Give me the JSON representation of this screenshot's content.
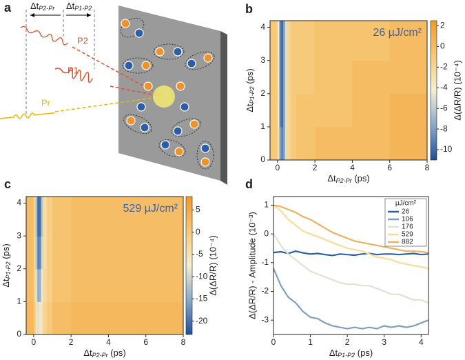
{
  "panel_labels": [
    "a",
    "b",
    "c",
    "d"
  ],
  "diagram": {
    "delays": [
      [
        "Δt",
        "P2-Pr"
      ],
      [
        "Δt",
        "P1-P2"
      ]
    ],
    "beams": [
      "P2",
      "P1",
      "Pr"
    ]
  },
  "chart_data": [
    {
      "type": "heatmap",
      "annotation": "26 µJ/cm²",
      "x_edges": [
        -0.4,
        0,
        0.1,
        0.2,
        0.3,
        0.4,
        0.5,
        0.7,
        1,
        2,
        4,
        6,
        8
      ],
      "y_edges": [
        0,
        1,
        2,
        3,
        4.2
      ],
      "z": [
        [
          -1,
          -3,
          -8,
          -9,
          -8,
          -5,
          -2,
          -1,
          -0.5,
          0,
          0,
          0.5
        ],
        [
          -1,
          -4,
          -9,
          -10,
          -8,
          -5,
          -2,
          -1,
          -0.5,
          -0.5,
          0,
          0.5
        ],
        [
          -1,
          -4,
          -9,
          -10,
          -8,
          -5,
          -2,
          -1,
          -1,
          -0.5,
          0,
          0
        ],
        [
          -1,
          -4,
          -9,
          -10,
          -8,
          -5,
          -2,
          -1,
          -1,
          -0.5,
          -0.5,
          0
        ]
      ],
      "xlim": [
        -0.4,
        8
      ],
      "ylim": [
        0,
        4.2
      ],
      "xticks": [
        0,
        2,
        4,
        6,
        8
      ],
      "yticks": [
        0,
        1,
        2,
        3,
        4
      ],
      "xlabel": [
        "Δt",
        "P2-Pr",
        " (ps)"
      ],
      "ylabel": [
        "Δt",
        "P1-P2",
        " (ps)"
      ],
      "colorbar": {
        "label": "Δ(ΔR/R) (10⁻⁴)",
        "lim": [
          -11,
          2.5
        ],
        "ticks": [
          2,
          0,
          -2,
          -4,
          -6,
          -8,
          -10
        ]
      },
      "colormap": [
        "#1f4e96",
        "#8aa9c8",
        "#f4eed2",
        "#f7c877",
        "#f09a2a"
      ]
    },
    {
      "type": "heatmap",
      "annotation": "529 µJ/cm²",
      "x_edges": [
        -0.4,
        0,
        0.1,
        0.2,
        0.3,
        0.4,
        0.5,
        0.7,
        1,
        2,
        4,
        6,
        8
      ],
      "y_edges": [
        0,
        1,
        2,
        3,
        4.2
      ],
      "z": [
        [
          3,
          0,
          -5,
          -9,
          -8,
          -5,
          -2,
          0,
          2,
          3,
          3,
          3
        ],
        [
          2,
          -2,
          -9,
          -15,
          -14,
          -8,
          -3,
          -1,
          1,
          2,
          2,
          2
        ],
        [
          2,
          -3,
          -12,
          -19,
          -18,
          -10,
          -4,
          -1,
          1,
          2,
          2,
          2
        ],
        [
          2,
          -3,
          -13,
          -21,
          -20,
          -12,
          -4,
          -1,
          1,
          2,
          2,
          2
        ]
      ],
      "xlim": [
        -0.4,
        8
      ],
      "ylim": [
        0,
        4.2
      ],
      "xticks": [
        0,
        2,
        4,
        6,
        8
      ],
      "yticks": [
        0,
        1,
        2,
        3,
        4
      ],
      "xlabel": [
        "Δt",
        "P2-Pr",
        " (ps)"
      ],
      "ylabel": [
        "Δt",
        "P1-P2",
        " (ps)"
      ],
      "colorbar": {
        "label": "Δ(ΔR/R) (10⁻⁴)",
        "lim": [
          -23,
          8
        ],
        "ticks": [
          5,
          0,
          -5,
          -10,
          -15,
          -20
        ]
      },
      "colormap": [
        "#1f4e96",
        "#8aa9c8",
        "#f4eed2",
        "#f7c877",
        "#f09a2a"
      ]
    },
    {
      "type": "line",
      "x": [
        0,
        0.2,
        0.4,
        0.6,
        0.8,
        1.0,
        1.2,
        1.4,
        1.6,
        1.8,
        2.0,
        2.2,
        2.4,
        2.6,
        2.8,
        3.0,
        3.2,
        3.4,
        3.6,
        3.8,
        4.0,
        4.2
      ],
      "series": [
        {
          "name": "26",
          "color": "#2a5ea8",
          "values": [
            -0.65,
            -0.62,
            -0.68,
            -0.6,
            -0.66,
            -0.7,
            -0.68,
            -0.72,
            -0.75,
            -0.7,
            -0.72,
            -0.74,
            -0.7,
            -0.68,
            -0.72,
            -0.7,
            -0.7,
            -0.72,
            -0.7,
            -0.68,
            -0.72,
            -0.7
          ]
        },
        {
          "name": "106",
          "color": "#7f9fbf",
          "values": [
            -1.2,
            -1.8,
            -2.2,
            -2.4,
            -2.7,
            -2.9,
            -2.95,
            -3.1,
            -3.2,
            -3.25,
            -3.3,
            -3.25,
            -3.3,
            -3.25,
            -3.3,
            -3.2,
            -3.25,
            -3.2,
            -3.25,
            -3.2,
            -3.1,
            -3.0
          ]
        },
        {
          "name": "176",
          "color": "#dce6cf",
          "values": [
            0,
            -0.4,
            -0.7,
            -0.9,
            -1.1,
            -1.3,
            -1.4,
            -1.5,
            -1.6,
            -1.7,
            -1.75,
            -1.75,
            -1.8,
            -1.8,
            -1.9,
            -2.0,
            -2.1,
            -2.1,
            -2.2,
            -2.3,
            -2.3,
            -2.4
          ]
        },
        {
          "name": "529",
          "color": "#f8dc98",
          "values": [
            1.0,
            0.8,
            0.5,
            0.3,
            0.1,
            0.0,
            -0.1,
            -0.2,
            -0.3,
            -0.4,
            -0.5,
            -0.55,
            -0.6,
            -0.7,
            -0.8,
            -0.85,
            -0.9,
            -1.0,
            -1.05,
            -1.1,
            -1.15,
            -1.2
          ]
        },
        {
          "name": "882",
          "color": "#f0b060",
          "values": [
            1.0,
            0.95,
            0.85,
            0.75,
            0.6,
            0.5,
            0.35,
            0.2,
            0.05,
            -0.05,
            -0.15,
            -0.25,
            -0.3,
            -0.35,
            -0.4,
            -0.45,
            -0.5,
            -0.55,
            -0.6,
            -0.6,
            -0.62,
            -0.65
          ]
        }
      ],
      "xlim": [
        0,
        4.2
      ],
      "ylim": [
        -3.5,
        1.3
      ],
      "xticks": [
        0,
        1,
        2,
        3,
        4
      ],
      "yticks": [
        1,
        0,
        -1,
        -2,
        -3
      ],
      "xlabel": [
        "Δt",
        "P1-P2",
        " (ps)"
      ],
      "ylabel": "Δ(ΔR/R) - Amplitude (10⁻³)",
      "legend_title": "µJ/cm²",
      "legend": "top-right"
    }
  ]
}
